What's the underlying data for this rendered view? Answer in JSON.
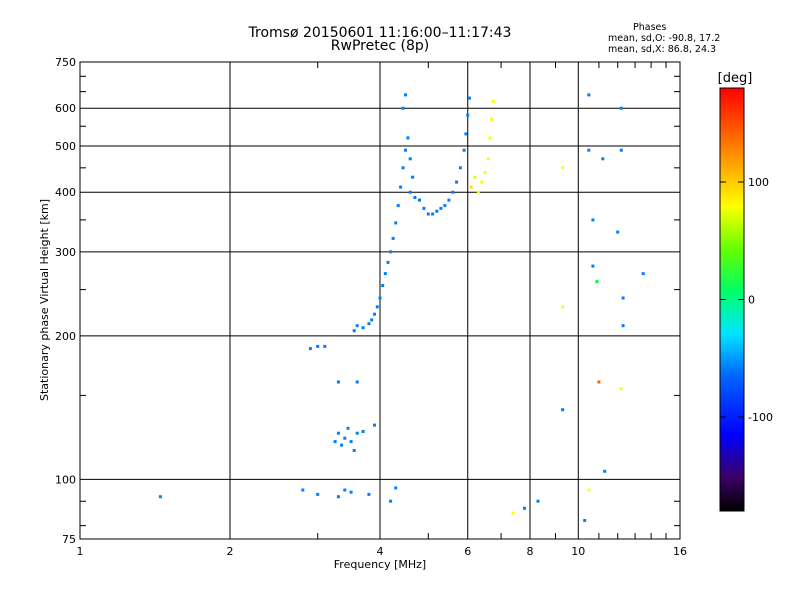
{
  "header": {
    "title": "Tromsø 20150601 11:16:00–11:17:43",
    "subtitle": "RwPretec (8p)"
  },
  "stats": {
    "heading": "Phases",
    "line_o": "mean, sd,O: -90.8, 17.2",
    "line_x": "mean, sd,X:  86.8, 24.3"
  },
  "chart_data": {
    "type": "scatter",
    "xlabel": "Frequency [MHz]",
    "ylabel": "Stationary phase Virtual Height [km]",
    "xscale": "log",
    "yscale": "log",
    "xlim": [
      1,
      16
    ],
    "ylim": [
      75,
      750
    ],
    "xticks": [
      1,
      2,
      4,
      6,
      8,
      10,
      16
    ],
    "xtick_labels": [
      "1",
      "2",
      "4",
      "6",
      "8",
      "10",
      "16"
    ],
    "yticks": [
      75,
      100,
      200,
      300,
      400,
      500,
      600,
      750
    ],
    "ytick_labels": [
      "75",
      "100",
      "200",
      "300",
      "400",
      "500",
      "600",
      "750"
    ],
    "grid": true,
    "colorbar": {
      "label": "[deg]",
      "min": -180,
      "max": 180,
      "ticks": [
        100,
        0,
        -100
      ],
      "tick_labels": [
        "100",
        "0",
        "-100"
      ],
      "colormap": "rainbow"
    },
    "series": [
      {
        "points": [
          [
            1.45,
            92,
            -100
          ],
          [
            2.8,
            95,
            -100
          ],
          [
            3.0,
            93,
            -100
          ],
          [
            3.3,
            92,
            -100
          ],
          [
            3.4,
            95,
            -100
          ],
          [
            3.5,
            94,
            -100
          ],
          [
            3.8,
            93,
            -100
          ],
          [
            4.2,
            90,
            -100
          ],
          [
            4.3,
            96,
            -100
          ],
          [
            2.9,
            188,
            -100
          ],
          [
            3.0,
            190,
            -100
          ],
          [
            3.1,
            190,
            -100
          ],
          [
            3.3,
            160,
            -100
          ],
          [
            3.6,
            160,
            -100
          ],
          [
            3.9,
            130,
            -100
          ],
          [
            3.25,
            120,
            -100
          ],
          [
            3.3,
            125,
            -100
          ],
          [
            3.35,
            118,
            -100
          ],
          [
            3.4,
            122,
            -100
          ],
          [
            3.5,
            120,
            -100
          ],
          [
            3.55,
            115,
            -100
          ],
          [
            3.6,
            125,
            -100
          ],
          [
            3.7,
            126,
            -100
          ],
          [
            3.45,
            128,
            -100
          ],
          [
            3.55,
            205,
            -100
          ],
          [
            3.6,
            210,
            -100
          ],
          [
            3.7,
            208,
            -100
          ],
          [
            3.8,
            212,
            -100
          ],
          [
            3.85,
            216,
            -100
          ],
          [
            3.9,
            222,
            -100
          ],
          [
            3.95,
            230,
            -100
          ],
          [
            4.0,
            240,
            -100
          ],
          [
            4.05,
            255,
            -100
          ],
          [
            4.1,
            270,
            -100
          ],
          [
            4.15,
            285,
            -100
          ],
          [
            4.2,
            300,
            -100
          ],
          [
            4.25,
            320,
            -100
          ],
          [
            4.3,
            345,
            -100
          ],
          [
            4.35,
            375,
            -100
          ],
          [
            4.4,
            410,
            -100
          ],
          [
            4.45,
            450,
            -100
          ],
          [
            4.5,
            490,
            -100
          ],
          [
            4.55,
            520,
            -100
          ],
          [
            4.6,
            470,
            -100
          ],
          [
            4.65,
            430,
            -100
          ],
          [
            4.6,
            400,
            -100
          ],
          [
            4.7,
            390,
            -100
          ],
          [
            4.8,
            385,
            -100
          ],
          [
            4.9,
            370,
            -100
          ],
          [
            5.0,
            360,
            -100
          ],
          [
            5.1,
            360,
            -100
          ],
          [
            5.2,
            365,
            -100
          ],
          [
            5.3,
            370,
            -100
          ],
          [
            5.4,
            375,
            -100
          ],
          [
            5.5,
            385,
            -100
          ],
          [
            5.6,
            400,
            -100
          ],
          [
            5.7,
            420,
            -100
          ],
          [
            5.8,
            450,
            -100
          ],
          [
            5.9,
            490,
            -100
          ],
          [
            5.95,
            530,
            -100
          ],
          [
            6.0,
            580,
            -100
          ],
          [
            6.05,
            630,
            -100
          ],
          [
            4.45,
            600,
            -100
          ],
          [
            4.5,
            640,
            -100
          ],
          [
            6.3,
            400,
            100
          ],
          [
            6.4,
            420,
            100
          ],
          [
            6.5,
            440,
            100
          ],
          [
            6.6,
            470,
            100
          ],
          [
            6.65,
            520,
            100
          ],
          [
            6.7,
            570,
            100
          ],
          [
            6.75,
            620,
            100
          ],
          [
            6.2,
            430,
            90
          ],
          [
            6.1,
            410,
            110
          ],
          [
            9.3,
            230,
            100
          ],
          [
            9.3,
            450,
            100
          ],
          [
            9.3,
            140,
            -100
          ],
          [
            10.5,
            640,
            -100
          ],
          [
            10.5,
            490,
            -100
          ],
          [
            10.7,
            350,
            -100
          ],
          [
            10.7,
            280,
            -100
          ],
          [
            10.9,
            260,
            0
          ],
          [
            11.0,
            160,
            150
          ],
          [
            11.2,
            470,
            -100
          ],
          [
            11.3,
            104,
            -100
          ],
          [
            12.2,
            600,
            -100
          ],
          [
            12.2,
            490,
            -100
          ],
          [
            12.0,
            330,
            -100
          ],
          [
            12.3,
            240,
            -100
          ],
          [
            12.3,
            210,
            -100
          ],
          [
            12.2,
            155,
            100
          ],
          [
            13.5,
            270,
            -100
          ],
          [
            7.4,
            85,
            100
          ],
          [
            7.8,
            87,
            -100
          ],
          [
            8.3,
            90,
            -100
          ],
          [
            10.3,
            82,
            -100
          ],
          [
            10.5,
            95,
            100
          ]
        ]
      }
    ]
  }
}
